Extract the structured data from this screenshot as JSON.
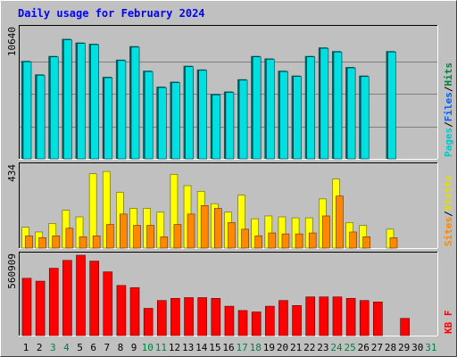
{
  "title": "Daily usage for February 2024",
  "colors": {
    "background": "#c0c0c0",
    "title": "#0000ff",
    "hits": "#00e0e0",
    "files": "#00b0ff",
    "pages": "#00c8c8",
    "visits": "#ffff00",
    "sites": "#ff8800",
    "kbytes": "#ff0000",
    "weekend_day": "#008040",
    "weekday": "#000000"
  },
  "chart_data": [
    {
      "type": "bar",
      "name": "hits-files",
      "max_label": "10640",
      "legend": [
        {
          "text": "Pages",
          "color": "#00c8c8"
        },
        {
          "text": "/",
          "color": "#000000"
        },
        {
          "text": "Files",
          "color": "#0060ff"
        },
        {
          "text": "/",
          "color": "#000000"
        },
        {
          "text": "Hits",
          "color": "#008040"
        }
      ],
      "categories": [
        "1",
        "2",
        "3",
        "4",
        "5",
        "6",
        "7",
        "8",
        "9",
        "10",
        "11",
        "12",
        "13",
        "14",
        "15",
        "16",
        "17",
        "18",
        "19",
        "20",
        "21",
        "22",
        "23",
        "24",
        "25",
        "26",
        "27",
        "28",
        "29",
        "30",
        "31"
      ],
      "ylim": [
        0,
        10640
      ],
      "series": [
        {
          "key": "hits",
          "values": [
            8000,
            6900,
            8400,
            9800,
            9500,
            9400,
            6700,
            8100,
            9200,
            7200,
            5900,
            6300,
            7600,
            7300,
            5300,
            5500,
            6500,
            8400,
            8200,
            7200,
            6800,
            8400,
            9100,
            8800,
            7500,
            6800,
            null,
            8800,
            null,
            null,
            null
          ]
        },
        {
          "key": "files",
          "values": [
            8000,
            6900,
            8400,
            9800,
            9500,
            9400,
            6700,
            8100,
            9200,
            7200,
            5900,
            6300,
            7600,
            7300,
            5300,
            5500,
            6500,
            8400,
            8200,
            7200,
            6800,
            8400,
            9100,
            8800,
            7500,
            6800,
            null,
            8800,
            null,
            null,
            null
          ]
        }
      ]
    },
    {
      "type": "bar",
      "name": "visits-sites",
      "max_label": "434",
      "legend": [
        {
          "text": "Sites",
          "color": "#ff8800"
        },
        {
          "text": "/",
          "color": "#000000"
        },
        {
          "text": "Visits",
          "color": "#e0e000"
        }
      ],
      "categories": [
        "1",
        "2",
        "3",
        "4",
        "5",
        "6",
        "7",
        "8",
        "9",
        "10",
        "11",
        "12",
        "13",
        "14",
        "15",
        "16",
        "17",
        "18",
        "19",
        "20",
        "21",
        "22",
        "23",
        "24",
        "25",
        "26",
        "27",
        "28",
        "29",
        "30",
        "31"
      ],
      "ylim": [
        0,
        434
      ],
      "series": [
        {
          "key": "visits",
          "values": [
            110,
            85,
            130,
            200,
            165,
            393,
            405,
            295,
            210,
            210,
            190,
            390,
            330,
            300,
            235,
            190,
            280,
            155,
            170,
            165,
            160,
            160,
            260,
            365,
            135,
            120,
            null,
            100,
            null,
            null,
            null
          ]
        },
        {
          "key": "sites",
          "values": [
            65,
            55,
            65,
            105,
            60,
            65,
            125,
            180,
            120,
            120,
            60,
            125,
            180,
            225,
            210,
            135,
            100,
            65,
            80,
            75,
            75,
            80,
            170,
            275,
            85,
            60,
            null,
            55,
            null,
            null,
            null
          ]
        }
      ]
    },
    {
      "type": "bar",
      "name": "kbytes",
      "max_label": "560909",
      "legend": [
        {
          "text": "KB F",
          "color": "#ff0000"
        }
      ],
      "categories": [
        "1",
        "2",
        "3",
        "4",
        "5",
        "6",
        "7",
        "8",
        "9",
        "10",
        "11",
        "12",
        "13",
        "14",
        "15",
        "16",
        "17",
        "18",
        "19",
        "20",
        "21",
        "22",
        "23",
        "24",
        "25",
        "26",
        "27",
        "28",
        "29",
        "30",
        "31"
      ],
      "ylim": [
        0,
        560909
      ],
      "series": [
        {
          "key": "kbytes",
          "values": [
            400000,
            380000,
            470000,
            525000,
            560909,
            520000,
            445000,
            350000,
            335000,
            190000,
            245000,
            260000,
            265000,
            265000,
            260000,
            205000,
            175000,
            165000,
            205000,
            245000,
            210000,
            270000,
            270000,
            270000,
            260000,
            245000,
            235000,
            null,
            120000,
            null,
            null
          ]
        }
      ]
    }
  ],
  "x_axis": {
    "labels": [
      "1",
      "2",
      "3",
      "4",
      "5",
      "6",
      "7",
      "8",
      "9",
      "10",
      "11",
      "12",
      "13",
      "14",
      "15",
      "16",
      "17",
      "18",
      "19",
      "20",
      "21",
      "22",
      "23",
      "24",
      "25",
      "26",
      "27",
      "28",
      "29",
      "30",
      "31"
    ],
    "weekend": [
      3,
      4,
      10,
      11,
      17,
      18,
      24,
      25,
      31
    ]
  }
}
